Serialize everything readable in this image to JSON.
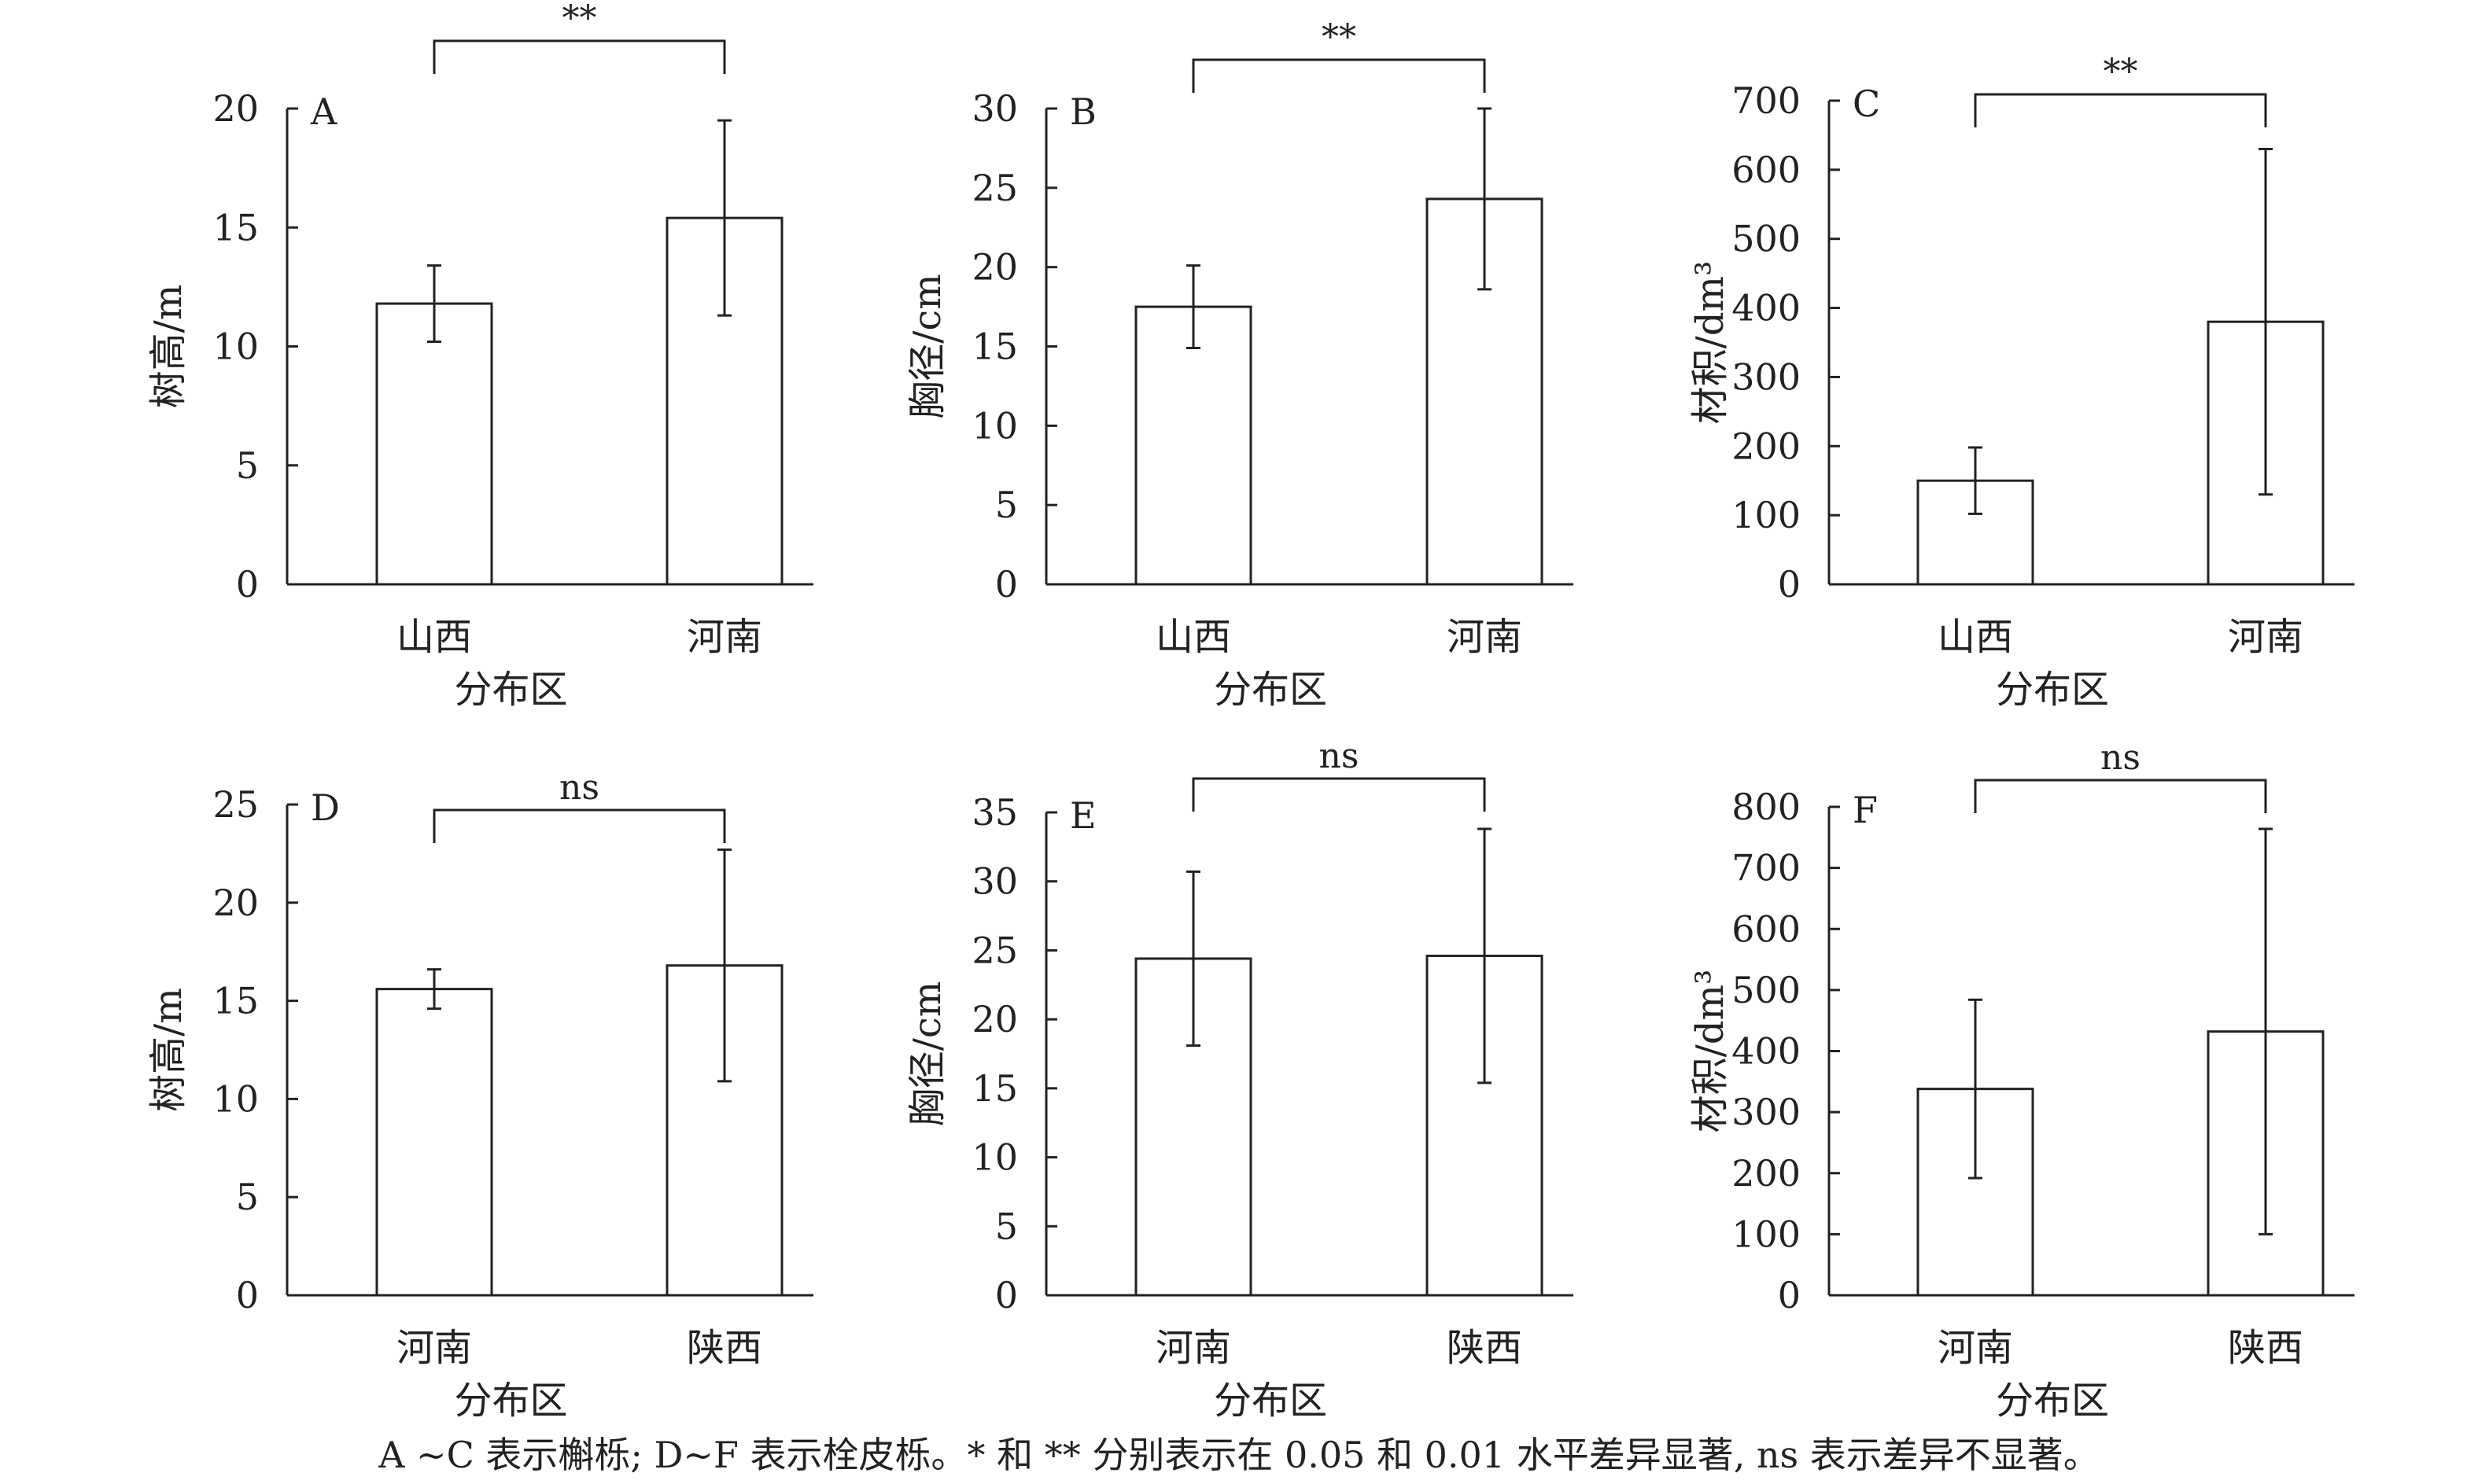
{
  "chart_data": [
    {
      "type": "bar",
      "panel": "A",
      "categories": [
        "山西",
        "河南"
      ],
      "values": [
        11.8,
        15.4
      ],
      "errors": [
        1.6,
        4.1
      ],
      "ylabel": "树高/m",
      "xlabel": "分布区",
      "ylim": [
        0,
        20
      ],
      "yticks": [
        0,
        5,
        10,
        15,
        20
      ],
      "significance": "**"
    },
    {
      "type": "bar",
      "panel": "B",
      "categories": [
        "山西",
        "河南"
      ],
      "values": [
        17.5,
        24.3
      ],
      "errors": [
        2.6,
        5.7
      ],
      "ylabel": "胸径/cm",
      "xlabel": "分布区",
      "ylim": [
        0,
        30
      ],
      "yticks": [
        0,
        5,
        10,
        15,
        20,
        25,
        30
      ],
      "significance": "**"
    },
    {
      "type": "bar",
      "panel": "C",
      "categories": [
        "山西",
        "河南"
      ],
      "values": [
        150,
        380
      ],
      "errors": [
        48,
        250
      ],
      "ylabel": "材积/dm³",
      "xlabel": "分布区",
      "ylim": [
        0,
        700
      ],
      "yticks": [
        0,
        100,
        200,
        300,
        400,
        500,
        600,
        700
      ],
      "significance": "**"
    },
    {
      "type": "bar",
      "panel": "D",
      "categories": [
        "河南",
        "陕西"
      ],
      "values": [
        15.6,
        16.8
      ],
      "errors": [
        1.0,
        5.9
      ],
      "ylabel": "树高/m",
      "xlabel": "分布区",
      "ylim": [
        0,
        25
      ],
      "yticks": [
        0,
        5,
        10,
        15,
        20,
        25
      ],
      "significance": "ns"
    },
    {
      "type": "bar",
      "panel": "E",
      "categories": [
        "河南",
        "陕西"
      ],
      "values": [
        24.4,
        24.6
      ],
      "errors": [
        6.3,
        9.2
      ],
      "ylabel": "胸径/cm",
      "xlabel": "分布区",
      "ylim": [
        0,
        35
      ],
      "yticks": [
        0,
        5,
        10,
        15,
        20,
        25,
        30,
        35
      ],
      "significance": "ns"
    },
    {
      "type": "bar",
      "panel": "F",
      "categories": [
        "河南",
        "陕西"
      ],
      "values": [
        338,
        432
      ],
      "errors": [
        146,
        332
      ],
      "ylabel": "材积/dm³",
      "xlabel": "分布区",
      "ylim": [
        0,
        800
      ],
      "yticks": [
        0,
        100,
        200,
        300,
        400,
        500,
        600,
        700,
        800
      ],
      "significance": "ns"
    }
  ],
  "caption": "A ~C 表示槲栎; D~F 表示栓皮栎。* 和 ** 分别表示在 0.05 和 0.01 水平差异显著, ns 表示差异不显著。",
  "colors": {
    "bar_fill": "#ffffff",
    "stroke": "#222222"
  }
}
